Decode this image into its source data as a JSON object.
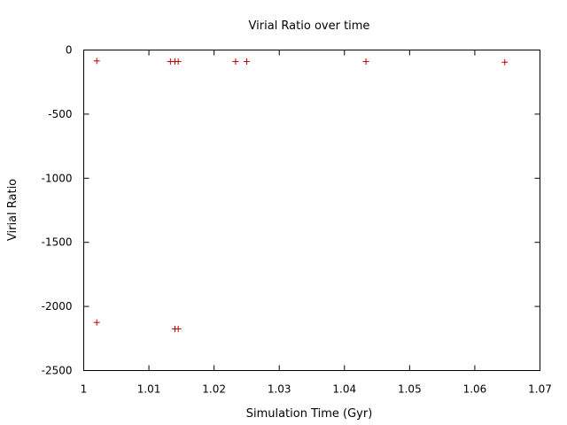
{
  "chart_data": {
    "type": "scatter",
    "title": "Virial Ratio over time",
    "xlabel": "Simulation Time (Gyr)",
    "ylabel": "Virial Ratio",
    "xlim": [
      1,
      1.07
    ],
    "ylim": [
      -2500,
      0
    ],
    "xticks": [
      1,
      1.01,
      1.02,
      1.03,
      1.04,
      1.05,
      1.06,
      1.07
    ],
    "xtick_labels": [
      "1",
      "1.01",
      "1.02",
      "1.03",
      "1.04",
      "1.05",
      "1.06",
      "1.07"
    ],
    "yticks": [
      0,
      -500,
      -1000,
      -1500,
      -2000,
      -2500
    ],
    "ytick_labels": [
      "0",
      "-500",
      "-1000",
      "-1500",
      "-2000",
      "-2500"
    ],
    "grid": false,
    "marker": "plus",
    "marker_color": "#c00000",
    "series": [
      {
        "points": [
          [
            1.002,
            -85
          ],
          [
            1.002,
            -2125
          ],
          [
            1.0133,
            -90
          ],
          [
            1.014,
            -90
          ],
          [
            1.0145,
            -90
          ],
          [
            1.014,
            -2175
          ],
          [
            1.0145,
            -2175
          ],
          [
            1.0233,
            -90
          ],
          [
            1.025,
            -90
          ],
          [
            1.0433,
            -90
          ],
          [
            1.0646,
            -95
          ]
        ]
      }
    ]
  }
}
